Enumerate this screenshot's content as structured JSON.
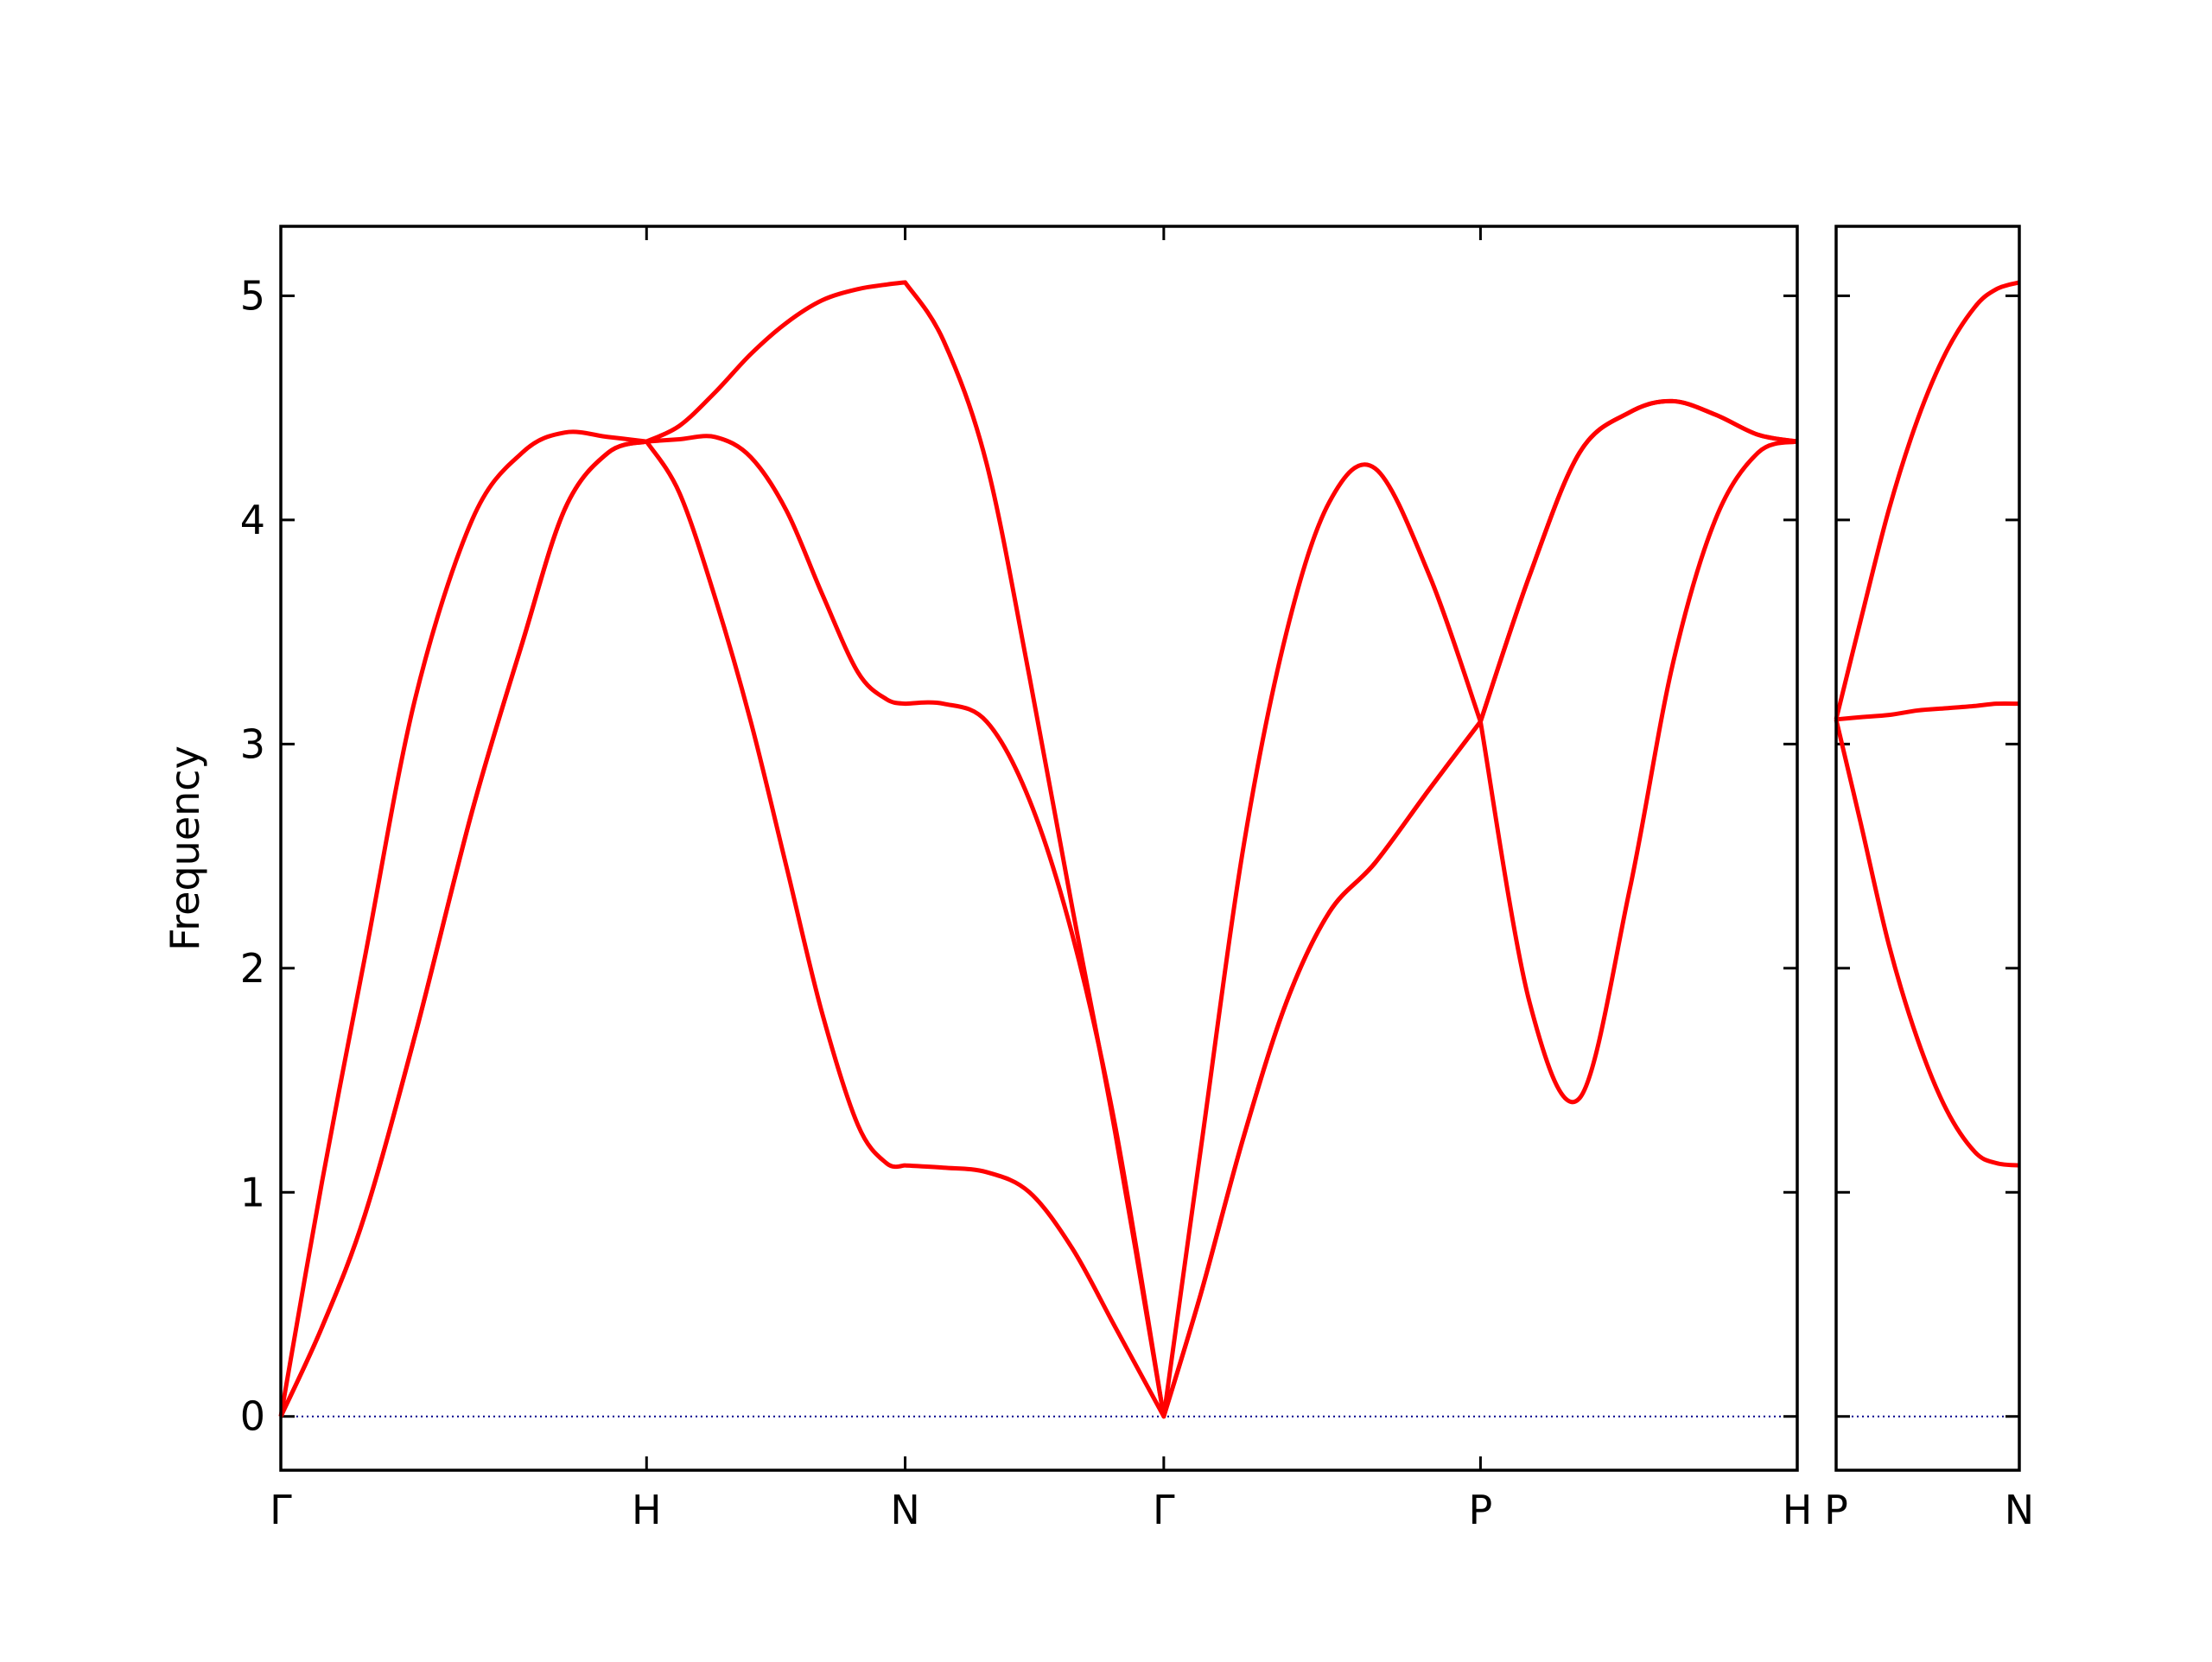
{
  "chart_data": [
    {
      "type": "line",
      "ylabel": "Frequency",
      "x": [
        0,
        0.113,
        0.23,
        0.367,
        0.523,
        0.66,
        0.777,
        0.895,
        1,
        1.09,
        1.188,
        1.285,
        1.383,
        1.48,
        1.578,
        1.656,
        1.7071,
        1.812,
        1.93,
        2.047,
        2.164,
        2.281,
        2.4142,
        2.516,
        2.633,
        2.75,
        2.867,
        2.992,
        3.141,
        3.2802,
        3.414,
        3.551,
        3.688,
        3.805,
        3.922,
        4.039,
        4.1463
      ],
      "series": [
        {
          "color": "#ff0000",
          "values": [
            0,
            0.4,
            0.9,
            1.7,
            2.7,
            3.45,
            4.05,
            4.3,
            4.35,
            4.12,
            3.65,
            3.1,
            2.45,
            1.8,
            1.3,
            1.13,
            1.12,
            1.11,
            1.09,
            1.0,
            0.75,
            0.4,
            0,
            0.55,
            1.25,
            1.85,
            2.25,
            2.47,
            2.8,
            3.1,
            3.75,
            4.3,
            4.48,
            4.53,
            4.47,
            4.38,
            4.35
          ]
        },
        {
          "color": "#ff0000",
          "values": [
            0,
            0.4,
            0.9,
            1.7,
            2.7,
            3.45,
            4.05,
            4.3,
            4.35,
            4.36,
            4.37,
            4.28,
            4.04,
            3.67,
            3.32,
            3.2,
            3.18,
            3.18,
            3.1,
            2.75,
            2.15,
            1.3,
            0,
            0.55,
            1.25,
            1.85,
            2.25,
            2.47,
            2.8,
            3.1,
            3.75,
            4.3,
            4.48,
            4.53,
            4.47,
            4.38,
            4.35
          ]
        },
        {
          "color": "#ff0000",
          "values": [
            0,
            1.05,
            2.05,
            3.2,
            4.0,
            4.3,
            4.39,
            4.37,
            4.35,
            4.42,
            4.57,
            4.74,
            4.88,
            4.98,
            5.03,
            5.05,
            5.06,
            4.8,
            4.25,
            3.3,
            2.27,
            1.27,
            0,
            1.2,
            2.55,
            3.5,
            4.08,
            4.23,
            3.75,
            3.1,
            1.85,
            1.42,
            2.35,
            3.35,
            4.0,
            4.3,
            4.35
          ]
        }
      ],
      "xlim": [
        0,
        4.1463
      ],
      "xticks": [
        {
          "value": 0,
          "label": "Γ"
        },
        {
          "value": 1,
          "label": "H"
        },
        {
          "value": 1.7071,
          "label": "N"
        },
        {
          "value": 2.4142,
          "label": "Γ"
        },
        {
          "value": 3.2802,
          "label": "P"
        },
        {
          "value": 4.1463,
          "label": "H"
        }
      ],
      "ylim": [
        -0.24,
        5.31
      ],
      "yticks": [
        0,
        1,
        2,
        3,
        4,
        5
      ],
      "ytick_labels": true,
      "hline": 0,
      "hline_color": "#00008b"
    },
    {
      "type": "line",
      "x": [
        4.1463,
        4.213,
        4.291,
        4.369,
        4.447,
        4.525,
        4.584,
        4.6463
      ],
      "series": [
        {
          "color": "#ff0000",
          "values": [
            3.11,
            3.55,
            4.05,
            4.45,
            4.75,
            4.95,
            5.03,
            5.06
          ]
        },
        {
          "color": "#ff0000",
          "values": [
            3.11,
            3.12,
            3.13,
            3.15,
            3.16,
            3.17,
            3.18,
            3.18
          ]
        },
        {
          "color": "#ff0000",
          "values": [
            3.11,
            2.65,
            2.1,
            1.68,
            1.37,
            1.18,
            1.13,
            1.12
          ]
        }
      ],
      "xlim": [
        4.1463,
        4.6463
      ],
      "xticks": [
        {
          "value": 4.1463,
          "label": "P"
        },
        {
          "value": 4.6463,
          "label": "N"
        }
      ],
      "ylim": [
        -0.24,
        5.31
      ],
      "yticks": [
        0,
        1,
        2,
        3,
        4,
        5
      ],
      "ytick_labels": false,
      "hline": 0,
      "hline_color": "#00008b"
    }
  ]
}
